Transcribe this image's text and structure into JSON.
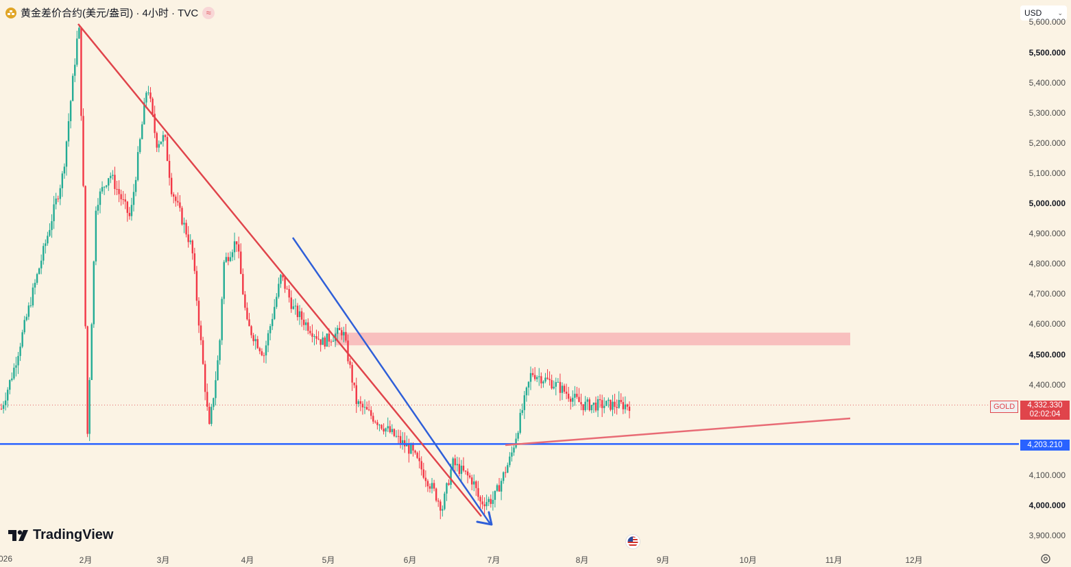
{
  "header": {
    "title": "黄金差价合约(美元/盎司) · 4小时 · TVC",
    "indicator_icon": "wave-icon",
    "symbol_icon": "gold-bars-icon"
  },
  "currency": {
    "value": "USD",
    "icon": "chevron-down-icon"
  },
  "price_axis": [
    {
      "label": "5,600.000",
      "value": 5600,
      "bold": false
    },
    {
      "label": "5,500.000",
      "value": 5500,
      "bold": true
    },
    {
      "label": "5,400.000",
      "value": 5400,
      "bold": false
    },
    {
      "label": "5,300.000",
      "value": 5300,
      "bold": false
    },
    {
      "label": "5,200.000",
      "value": 5200,
      "bold": false
    },
    {
      "label": "5,100.000",
      "value": 5100,
      "bold": false
    },
    {
      "label": "5,000.000",
      "value": 5000,
      "bold": true
    },
    {
      "label": "4,900.000",
      "value": 4900,
      "bold": false
    },
    {
      "label": "4,800.000",
      "value": 4800,
      "bold": false
    },
    {
      "label": "4,700.000",
      "value": 4700,
      "bold": false
    },
    {
      "label": "4,600.000",
      "value": 4600,
      "bold": false
    },
    {
      "label": "4,500.000",
      "value": 4500,
      "bold": true
    },
    {
      "label": "4,400.000",
      "value": 4400,
      "bold": false
    },
    {
      "label": "4,100.000",
      "value": 4100,
      "bold": false
    },
    {
      "label": "4,000.000",
      "value": 4000,
      "bold": true
    },
    {
      "label": "3,900.000",
      "value": 3900,
      "bold": false
    }
  ],
  "time_axis": [
    "026",
    "2月",
    "3月",
    "4月",
    "5月",
    "6月",
    "7月",
    "8月",
    "9月",
    "10月",
    "11月",
    "12月"
  ],
  "price_tag": {
    "symbol": "GOLD",
    "price": "4,332.330",
    "countdown": "02:02:04",
    "value": 4332.33,
    "color": "#E0444B"
  },
  "horizontal_line": {
    "label": "4,203.210",
    "value": 4203.21,
    "color": "#2962FF"
  },
  "zone": {
    "from": 4530,
    "to": 4572,
    "color": "#F7B9B9"
  },
  "trendlines": [
    {
      "name": "red-downtrend",
      "color": "#E0444B"
    },
    {
      "name": "blue-downtrend",
      "color": "#2F5FD8"
    },
    {
      "name": "red-rising-line",
      "color": "#E86B75"
    }
  ],
  "candle_colors": {
    "up": "#22AB94",
    "down": "#F23645"
  },
  "logo": "TradingView",
  "event_icon": "us-flag-icon",
  "settings_icon": "gear-icon",
  "chart_data": {
    "type": "line",
    "series": [
      {
        "values": [
          4320,
          4450,
          4680,
          4900,
          5100,
          5598,
          5000,
          4200,
          5000,
          5100,
          4950,
          5400,
          5200,
          5220,
          5050,
          4850,
          4250,
          4520,
          4800,
          4880,
          4600,
          4500,
          4760,
          4650,
          4540,
          4580,
          4340,
          4260,
          4180,
          4050,
          3990,
          4140,
          4080,
          4010,
          4020,
          4160,
          4440,
          4400,
          4332.33
        ]
      }
    ],
    "ylim": [
      3870,
      5600
    ]
  }
}
